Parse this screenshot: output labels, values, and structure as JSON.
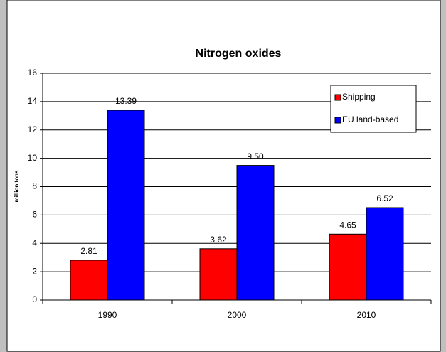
{
  "chart_data": {
    "type": "bar",
    "title": "Nitrogen oxides",
    "y_label": "million tons",
    "categories": [
      "1990",
      "2000",
      "2010"
    ],
    "series": [
      {
        "name": "Shipping",
        "color": "#ff0000",
        "values": [
          2.81,
          3.62,
          4.65
        ],
        "value_labels": [
          "2.81",
          "3.62",
          "4.65"
        ]
      },
      {
        "name": "EU land-based",
        "color": "#0000ff",
        "values": [
          13.39,
          9.5,
          6.52
        ],
        "value_labels": [
          "13.39",
          "9.50",
          "6.52"
        ]
      }
    ],
    "ylim": [
      0,
      16
    ],
    "yticks": [
      0,
      2,
      4,
      6,
      8,
      10,
      12,
      14,
      16
    ],
    "grid": true,
    "legend": "top-right"
  }
}
